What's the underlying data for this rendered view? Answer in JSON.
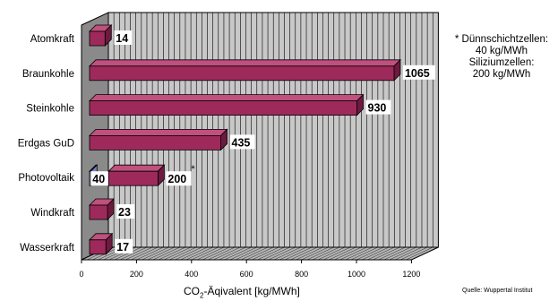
{
  "chart_data": {
    "type": "bar",
    "orientation": "horizontal",
    "style": "3d",
    "categories": [
      "Atomkraft",
      "Braunkohle",
      "Steinkohle",
      "Erdgas GuD",
      "Photovoltaik",
      "Windkraft",
      "Wasserkraft"
    ],
    "values": [
      14,
      1065,
      930,
      435,
      200,
      23,
      17
    ],
    "value_labels": [
      "14",
      "1065",
      "930",
      "435",
      "200",
      "23",
      "17"
    ],
    "secondary_bar": {
      "category": "Photovoltaik",
      "value": 40,
      "label": "40",
      "marker": "*"
    },
    "xlabel_prefix": "CO",
    "xlabel_sub": "2",
    "xlabel_suffix": "-Äqivalent [kg/MWh]",
    "xlim": [
      0,
      1200
    ],
    "xticks": [
      "0",
      "200",
      "400",
      "600",
      "800",
      "1000",
      "1200"
    ],
    "grid": true,
    "colors": {
      "bar": "#9e2a5c",
      "bar_top": "#c0507e",
      "bar_side": "#6e1a40",
      "secondary": "#a9a9ef",
      "secondary_top": "#c8c8ff",
      "secondary_side": "#7a7ac8",
      "wall": "#c8c8c8",
      "left_wall": "#8a8a8a",
      "floor": "#b4b4b4"
    }
  },
  "note": {
    "line1": "* Dünnschichtzellen:",
    "line2": "40 kg/MWh",
    "line3": "Siliziumzellen:",
    "line4": "200 kg/MWh"
  },
  "source": "Quelle: Wuppertal Institut"
}
